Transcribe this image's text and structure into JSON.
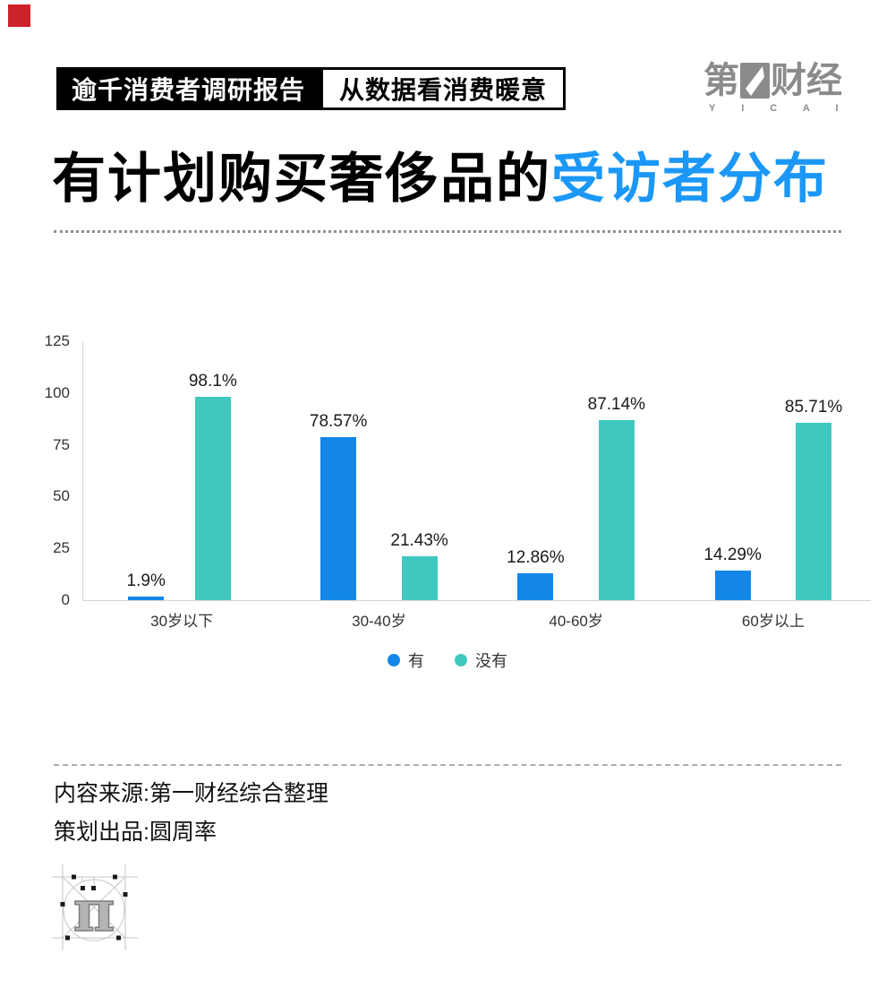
{
  "colors": {
    "accent_red": "#cc2229",
    "title_blue": "#1b97f7",
    "logo_gray": "#8b8b8b"
  },
  "header": {
    "badge_dark": "逾千消费者调研报告",
    "badge_light": "从数据看消费暖意",
    "brand": {
      "prefix": "第",
      "suffix": "财经",
      "latin": "Y I C A I"
    }
  },
  "title": {
    "black": "有计划购买奢侈品的",
    "highlight": "受访者分布"
  },
  "chart_data": {
    "type": "bar",
    "categories": [
      "30岁以下",
      "30-40岁",
      "40-60岁",
      "60岁以上"
    ],
    "series": [
      {
        "name": "有",
        "color": "#1287e8",
        "values": [
          1.9,
          78.57,
          12.86,
          14.29
        ],
        "labels": [
          "1.9%",
          "78.57%",
          "12.86%",
          "14.29%"
        ]
      },
      {
        "name": "没有",
        "color": "#3fc8c0",
        "values": [
          98.1,
          21.43,
          87.14,
          85.71
        ],
        "labels": [
          "98.1%",
          "21.43%",
          "87.14%",
          "85.71%"
        ]
      }
    ],
    "title": "有计划购买奢侈品的受访者分布",
    "xlabel": "",
    "ylabel": "",
    "y_ticks": [
      0,
      25,
      50,
      75,
      100,
      125
    ],
    "ylim": [
      0,
      125
    ],
    "grid": false,
    "legend_position": "bottom"
  },
  "footer": {
    "line1": "内容来源:第一财经综合整理",
    "line2": "策划出品:圆周率"
  }
}
